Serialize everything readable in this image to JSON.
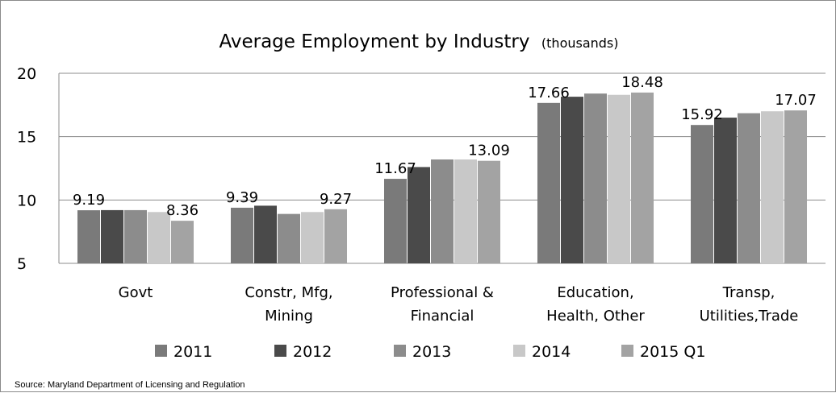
{
  "chart_data": {
    "type": "bar",
    "title": "Average Employment by Industry",
    "subtitle": "(thousands)",
    "categories": [
      [
        "Govt"
      ],
      [
        "Constr, Mfg,",
        "Mining"
      ],
      [
        "Professional &",
        "Financial"
      ],
      [
        "Education,",
        "Health,  Other"
      ],
      [
        "Transp,",
        "Utilities,Trade"
      ]
    ],
    "ylim": [
      5,
      20
    ],
    "yticks": [
      "5",
      "10",
      "15",
      "20"
    ],
    "gridlines": true,
    "legend_position": "bottom",
    "series": [
      {
        "name": "2011",
        "color": "#7a7a7a",
        "values": [
          9.19,
          9.39,
          11.67,
          17.66,
          15.92
        ]
      },
      {
        "name": "2012",
        "color": "#4a4a4a",
        "values": [
          9.2,
          9.55,
          12.6,
          18.15,
          16.5
        ]
      },
      {
        "name": "2013",
        "color": "#8c8c8c",
        "values": [
          9.2,
          8.9,
          13.2,
          18.4,
          16.85
        ]
      },
      {
        "name": "2014",
        "color": "#c8c8c8",
        "values": [
          9.05,
          9.05,
          13.2,
          18.3,
          17.0
        ]
      },
      {
        "name": "2015 Q1",
        "color": "#a3a3a3",
        "values": [
          8.36,
          9.27,
          13.09,
          18.48,
          17.07
        ]
      }
    ],
    "data_labels": [
      {
        "category": 0,
        "series": 0,
        "text": "9.19"
      },
      {
        "category": 0,
        "series": 4,
        "text": "8.36"
      },
      {
        "category": 1,
        "series": 0,
        "text": "9.39"
      },
      {
        "category": 1,
        "series": 4,
        "text": "9.27"
      },
      {
        "category": 2,
        "series": 0,
        "text": "11.67"
      },
      {
        "category": 2,
        "series": 4,
        "text": "13.09"
      },
      {
        "category": 3,
        "series": 0,
        "text": "17.66"
      },
      {
        "category": 3,
        "series": 4,
        "text": "18.48"
      },
      {
        "category": 4,
        "series": 0,
        "text": "15.92"
      },
      {
        "category": 4,
        "series": 4,
        "text": "17.07"
      }
    ],
    "source": "Source: Maryland Department of Licensing and Regulation"
  }
}
